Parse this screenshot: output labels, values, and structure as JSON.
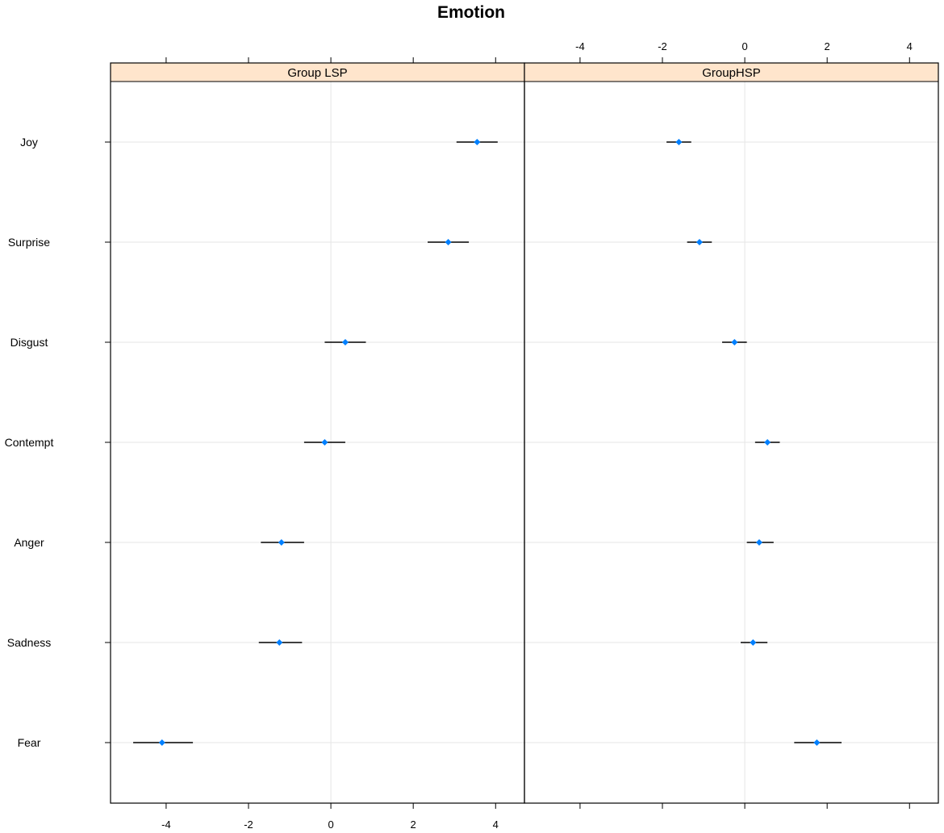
{
  "chart_data": {
    "type": "scatter",
    "title": "Emotion",
    "categories": [
      "Joy",
      "Surprise",
      "Disgust",
      "Contempt",
      "Anger",
      "Sadness",
      "Fear"
    ],
    "xlim": [
      -5.35,
      4.7
    ],
    "x_ticks": [
      -4,
      -2,
      0,
      2,
      4
    ],
    "x_tick_labels": [
      "-4",
      "-2",
      "0",
      "2",
      "4"
    ],
    "grid": true,
    "point_color": "#0080ff",
    "strip_color": "#ffe5cc",
    "panels": [
      {
        "name": "Group LSP",
        "values": [
          3.55,
          2.85,
          0.35,
          -0.15,
          -1.2,
          -1.25,
          -4.1
        ],
        "lower": [
          3.05,
          2.35,
          -0.15,
          -0.65,
          -1.7,
          -1.75,
          -4.8
        ],
        "upper": [
          4.05,
          3.35,
          0.85,
          0.35,
          -0.65,
          -0.7,
          -3.35
        ]
      },
      {
        "name": "GroupHSP",
        "values": [
          -1.6,
          -1.1,
          -0.25,
          0.55,
          0.35,
          0.2,
          1.75
        ],
        "lower": [
          -1.9,
          -1.4,
          -0.55,
          0.25,
          0.05,
          -0.1,
          1.2
        ],
        "upper": [
          -1.3,
          -0.8,
          0.05,
          0.85,
          0.7,
          0.55,
          2.35
        ]
      }
    ]
  }
}
